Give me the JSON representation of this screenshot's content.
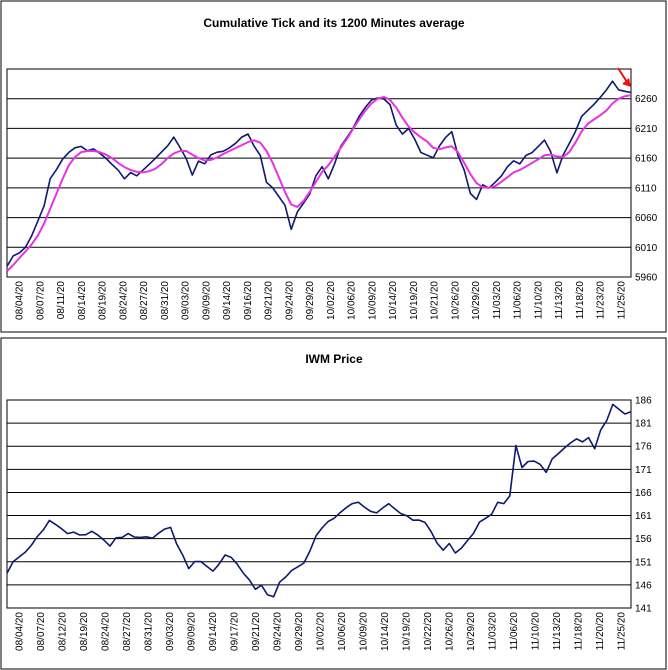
{
  "chart_data": [
    {
      "type": "line",
      "title": "Cumulative Tick and its 1200 Minutes average",
      "ylim": [
        5960,
        6310
      ],
      "yticks": [
        5960,
        6010,
        6060,
        6110,
        6160,
        6210,
        6260
      ],
      "x_labels": [
        "08/04/20",
        "08/07/20",
        "08/11/20",
        "08/14/20",
        "08/19/20",
        "08/24/20",
        "08/27/20",
        "08/31/20",
        "09/03/20",
        "09/09/20",
        "09/14/20",
        "09/16/20",
        "09/21/20",
        "09/24/20",
        "09/29/20",
        "10/02/20",
        "10/06/20",
        "10/09/20",
        "10/14/20",
        "10/19/20",
        "10/21/20",
        "10/26/20",
        "10/29/20",
        "11/03/20",
        "11/06/20",
        "11/10/20",
        "11/13/20",
        "11/18/20",
        "11/23/20",
        "11/25/20"
      ],
      "grid": "horizontal",
      "series_colors": {
        "tick": "#0d1a6e",
        "average": "#e633e6"
      },
      "arrow_color": "#ee1111",
      "series": [
        {
          "key": "tick",
          "values": [
            5978,
            5995,
            6000,
            6010,
            6030,
            6055,
            6080,
            6125,
            6140,
            6158,
            6170,
            6178,
            6180,
            6172,
            6175,
            6168,
            6160,
            6150,
            6140,
            6125,
            6135,
            6130,
            6140,
            6150,
            6160,
            6170,
            6180,
            6195,
            6178,
            6160,
            6132,
            6155,
            6150,
            6165,
            6170,
            6172,
            6178,
            6185,
            6195,
            6200,
            6180,
            6165,
            6120,
            6110,
            6095,
            6080,
            6040,
            6070,
            6085,
            6100,
            6130,
            6145,
            6125,
            6150,
            6180,
            6195,
            6210,
            6230,
            6245,
            6258,
            6262,
            6260,
            6250,
            6215,
            6200,
            6210,
            6192,
            6170,
            6165,
            6160,
            6180,
            6195,
            6205,
            6165,
            6140,
            6100,
            6090,
            6115,
            6110,
            6120,
            6130,
            6145,
            6155,
            6150,
            6165,
            6170,
            6180,
            6190,
            6170,
            6135,
            6165,
            6185,
            6205,
            6230,
            6240,
            6250,
            6262,
            6275,
            6290,
            6275,
            6272,
            6270
          ]
        },
        {
          "key": "average",
          "values": [
            5970,
            5980,
            5992,
            6003,
            6015,
            6030,
            6050,
            6075,
            6100,
            6125,
            6148,
            6162,
            6170,
            6172,
            6172,
            6170,
            6166,
            6160,
            6152,
            6145,
            6140,
            6137,
            6136,
            6138,
            6142,
            6150,
            6160,
            6168,
            6172,
            6172,
            6166,
            6160,
            6156,
            6157,
            6161,
            6167,
            6172,
            6177,
            6182,
            6187,
            6190,
            6186,
            6172,
            6152,
            6128,
            6103,
            6082,
            6078,
            6088,
            6103,
            6120,
            6137,
            6148,
            6162,
            6177,
            6192,
            6209,
            6225,
            6240,
            6252,
            6260,
            6263,
            6258,
            6245,
            6228,
            6213,
            6203,
            6195,
            6188,
            6177,
            6175,
            6178,
            6180,
            6170,
            6152,
            6133,
            6118,
            6111,
            6110,
            6113,
            6120,
            6128,
            6136,
            6140,
            6146,
            6152,
            6158,
            6165,
            6166,
            6163,
            6162,
            6170,
            6186,
            6205,
            6218,
            6225,
            6232,
            6240,
            6252,
            6260,
            6264,
            6266
          ]
        }
      ]
    },
    {
      "type": "line",
      "title": "IWM Price",
      "ylim": [
        141,
        186
      ],
      "yticks": [
        141,
        146,
        151,
        156,
        161,
        166,
        171,
        176,
        181,
        186
      ],
      "x_labels": [
        "08/04/20",
        "08/07/20",
        "08/12/20",
        "08/19/20",
        "08/24/20",
        "08/27/20",
        "08/31/20",
        "09/03/20",
        "09/09/20",
        "09/14/20",
        "09/17/20",
        "09/21/20",
        "09/24/20",
        "09/29/20",
        "10/02/20",
        "10/06/20",
        "10/09/20",
        "10/14/20",
        "10/19/20",
        "10/22/20",
        "10/26/20",
        "10/29/20",
        "11/03/20",
        "11/06/20",
        "11/10/20",
        "11/13/20",
        "11/18/20",
        "11/20/20",
        "11/25/20"
      ],
      "grid": "horizontal",
      "series_colors": {
        "price": "#0d1a6e"
      },
      "series": [
        {
          "key": "price",
          "values": [
            148.5,
            150.5,
            151.5,
            153,
            155,
            157,
            158,
            159.5,
            158.5,
            158,
            157.5,
            158,
            157,
            156.5,
            157,
            156.5,
            156,
            155,
            156.5,
            156,
            156.5,
            156,
            156.5,
            157,
            156.5,
            157,
            157.5,
            158,
            155,
            153,
            150,
            151,
            150.5,
            149.5,
            149,
            151,
            153,
            152,
            150,
            148,
            147,
            145.5,
            146.5,
            144,
            143,
            146,
            147.5,
            149.5,
            150.5,
            151,
            153,
            156,
            158,
            160,
            161,
            162,
            162.5,
            163,
            163.5,
            163,
            162.5,
            162,
            162.5,
            163,
            162,
            161.5,
            161.5,
            160.5,
            160,
            159,
            157,
            155,
            154,
            155.5,
            153,
            153.5,
            155,
            157,
            160,
            161,
            161.5,
            163.5,
            163,
            165,
            176.5,
            172,
            173,
            172.5,
            171.5,
            170,
            173.5,
            175,
            176,
            176.5,
            177,
            176.5,
            178,
            176,
            180,
            181.5,
            184.5,
            183.5,
            183,
            184
          ]
        }
      ]
    }
  ]
}
